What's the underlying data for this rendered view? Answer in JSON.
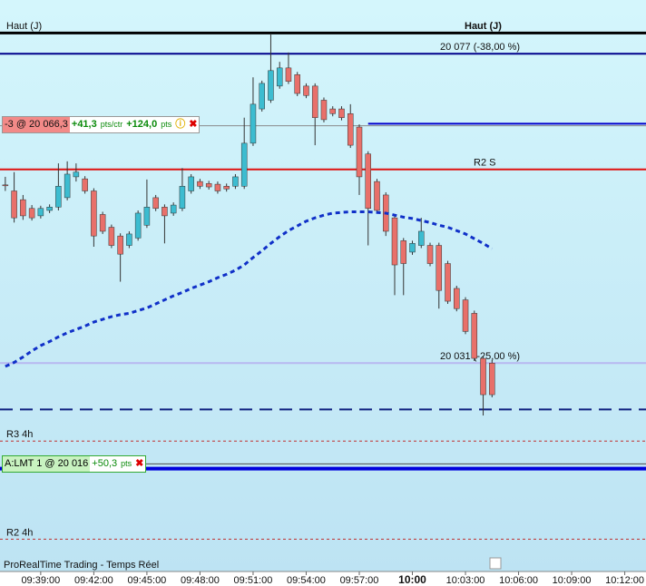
{
  "chart_data": {
    "type": "candlestick",
    "header_left": "Haut (J)",
    "header_right": "Haut (J)",
    "footer": "ProRealTime Trading - Temps Réel",
    "xlim": [
      36.7,
      73.2
    ],
    "ylim": [
      20000,
      20085
    ],
    "xticks": [
      {
        "value": 39,
        "label": "09:39:00"
      },
      {
        "value": 42,
        "label": "09:42:00"
      },
      {
        "value": 45,
        "label": "09:45:00"
      },
      {
        "value": 48,
        "label": "09:48:00"
      },
      {
        "value": 51,
        "label": "09:51:00"
      },
      {
        "value": 54,
        "label": "09:54:00"
      },
      {
        "value": 57,
        "label": "09:57:00"
      },
      {
        "value": 60,
        "label": "10:00"
      },
      {
        "value": 63,
        "label": "10:03:00"
      },
      {
        "value": 66,
        "label": "10:06:00"
      },
      {
        "value": 69,
        "label": "10:09:00"
      },
      {
        "value": 72,
        "label": "10:12:00"
      }
    ],
    "up_color": "#3cbcd0",
    "down_color": "#e8706a",
    "x": [
      37,
      37.5,
      38,
      38.5,
      39,
      39.5,
      40,
      40.5,
      41,
      41.5,
      42,
      42.5,
      43,
      43.5,
      44,
      44.5,
      45,
      45.5,
      46,
      46.5,
      47,
      47.5,
      48,
      48.5,
      49,
      49.5,
      50,
      50.5,
      51,
      51.5,
      52,
      52.5,
      53,
      53.5,
      54,
      54.5,
      55,
      55.5,
      56,
      56.5,
      57,
      57.5,
      58,
      58.5,
      59,
      59.5,
      60,
      60.5,
      61,
      61.5,
      62,
      62.5,
      63,
      63.5,
      64,
      64.5
    ],
    "open": [
      20057.5,
      20056.6,
      20055.3,
      20054,
      20052.9,
      20053.7,
      20054.2,
      20055.6,
      20058.7,
      20058.4,
      20056.6,
      20053.1,
      20051.2,
      20049.9,
      20048.5,
      20049.6,
      20051.5,
      20055.6,
      20054.2,
      20053.3,
      20054,
      20056.6,
      20058,
      20057.7,
      20057.6,
      20057.3,
      20057.3,
      20057.3,
      20063.7,
      20068.8,
      20070.1,
      20072.2,
      20074.9,
      20073.9,
      20072.2,
      20072.2,
      20070.1,
      20068.8,
      20068.8,
      20068.1,
      20066.1,
      20062.1,
      20058,
      20056,
      20052.6,
      20049.2,
      20047.5,
      20048.5,
      20048.5,
      20048.5,
      20045.8,
      20042.1,
      20040.4,
      20038.4,
      20031.7,
      20031
    ],
    "high": [
      20058.7,
      20059.4,
      20056,
      20054.5,
      20054.4,
      20054.6,
      20060.7,
      20061,
      20060.7,
      20058.8,
      20057,
      20053.5,
      20051.6,
      20050.3,
      20050.6,
      20053.7,
      20058.3,
      20056,
      20054.6,
      20054.9,
      20060,
      20059.1,
      20058.4,
      20058.1,
      20058,
      20057.7,
      20059.1,
      20067.5,
      20073.5,
      20073,
      20080,
      20075.8,
      20077.2,
      20074.3,
      20072.6,
      20072.6,
      20070.5,
      20069.2,
      20069.2,
      20069.5,
      20066.5,
      20062.5,
      20058.4,
      20056.4,
      20053,
      20049.6,
      20049.2,
      20052.6,
      20048.9,
      20048.9,
      20046.2,
      20042.5,
      20040.8,
      20038.8,
      20032.1,
      20031.5
    ],
    "low": [
      20056.6,
      20051.9,
      20052.3,
      20052.2,
      20052.5,
      20053.3,
      20053.7,
      20055.2,
      20058,
      20056.2,
      20048.3,
      20050.2,
      20048.1,
      20043.1,
      20048.1,
      20049.2,
      20051.1,
      20053.6,
      20048.8,
      20052.9,
      20053.6,
      20056.2,
      20056.9,
      20056.8,
      20056.2,
      20056.5,
      20056.9,
      20056.9,
      20063.3,
      20068.4,
      20069.7,
      20071.8,
      20072.5,
      20070.7,
      20070.4,
      20063.4,
      20066.8,
      20067.7,
      20067.1,
      20063,
      20056,
      20048.5,
      20053.3,
      20049.9,
      20041.1,
      20041.1,
      20047.1,
      20048.1,
      20045.4,
      20039.1,
      20039.8,
      20038.7,
      20035.3,
      20031.3,
      20023.2,
      20025.9
    ],
    "close": [
      20057.4,
      20052.6,
      20052.9,
      20052.6,
      20054,
      20054.2,
      20057.3,
      20059.1,
      20059.4,
      20056.6,
      20049.9,
      20050.6,
      20048.5,
      20047.2,
      20050.2,
      20053.3,
      20054.2,
      20054,
      20052.9,
      20054.5,
      20057.3,
      20058.7,
      20057.3,
      20057.2,
      20056.6,
      20056.9,
      20058.7,
      20063.7,
      20069.5,
      20072.6,
      20074.5,
      20074.9,
      20072.9,
      20071.1,
      20070.8,
      20067.5,
      20067.2,
      20068.1,
      20067.5,
      20063.4,
      20058.7,
      20054,
      20053.7,
      20050.6,
      20045.6,
      20045.8,
      20048.8,
      20050.6,
      20045.8,
      20041.8,
      20040.2,
      20039.1,
      20035.7,
      20031.7,
      20026.3,
      20026.3
    ],
    "ma": {
      "color": "#1030c8",
      "values": [
        20030.5,
        20031.1,
        20031.9,
        20032.8,
        20033.6,
        20034.2,
        20034.9,
        20035.5,
        20036,
        20036.5,
        20037.1,
        20037.5,
        20037.9,
        20038.2,
        20038.4,
        20038.8,
        20039.2,
        20039.8,
        20040.4,
        20041,
        20041.5,
        20042.1,
        20042.6,
        20043.1,
        20043.7,
        20044.2,
        20044.8,
        20045.6,
        20046.7,
        20047.7,
        20048.8,
        20049.8,
        20050.7,
        20051.4,
        20052.1,
        20052.6,
        20053,
        20053.3,
        20053.4,
        20053.5,
        20053.5,
        20053.5,
        20053.4,
        20053.3,
        20053,
        20052.7,
        20052.5,
        20052.2,
        20051.9,
        20051.5,
        20051.2,
        20050.7,
        20050.2,
        20049.5,
        20048.8,
        20048
      ]
    },
    "levels": [
      {
        "value": 20080.1,
        "color": "#000000",
        "style": "solid",
        "width": 3
      },
      {
        "value": 20077,
        "color": "#00008b",
        "style": "solid",
        "width": 2,
        "label": "20 077 (-38,00 %)"
      },
      {
        "value": 20066.6,
        "color": "#0000cc",
        "style": "solid",
        "width": 2,
        "start": 57.5
      },
      {
        "value": 20059.8,
        "color": "#e01010",
        "style": "solid",
        "width": 2,
        "label": "R2 S"
      },
      {
        "value": 20031,
        "color": "#b8b8f0",
        "style": "solid",
        "width": 2,
        "label": "20 031 (-25,00 %)"
      },
      {
        "value": 20024.1,
        "color": "#102080",
        "style": "dashed",
        "width": 2
      },
      {
        "value": 20019.4,
        "color": "#c03030",
        "style": "dotted",
        "width": 1,
        "label": "R3 4h"
      },
      {
        "value": 20015.3,
        "color": "#0000dd",
        "style": "solid",
        "width": 4
      },
      {
        "value": 20004.8,
        "color": "#c03030",
        "style": "dotted",
        "width": 1,
        "label": "R2 4h"
      }
    ],
    "position": {
      "text": "-3 @ 20 066,3",
      "price": 20066.3,
      "gain": "+41,3",
      "gain_unit": "pts/ctr",
      "total": "+124,0",
      "total_unit": "pts"
    },
    "order": {
      "text": "A:LMT 1 @ 20 016",
      "price": 20016,
      "gain": "+50,3",
      "gain_unit": "pts"
    }
  }
}
